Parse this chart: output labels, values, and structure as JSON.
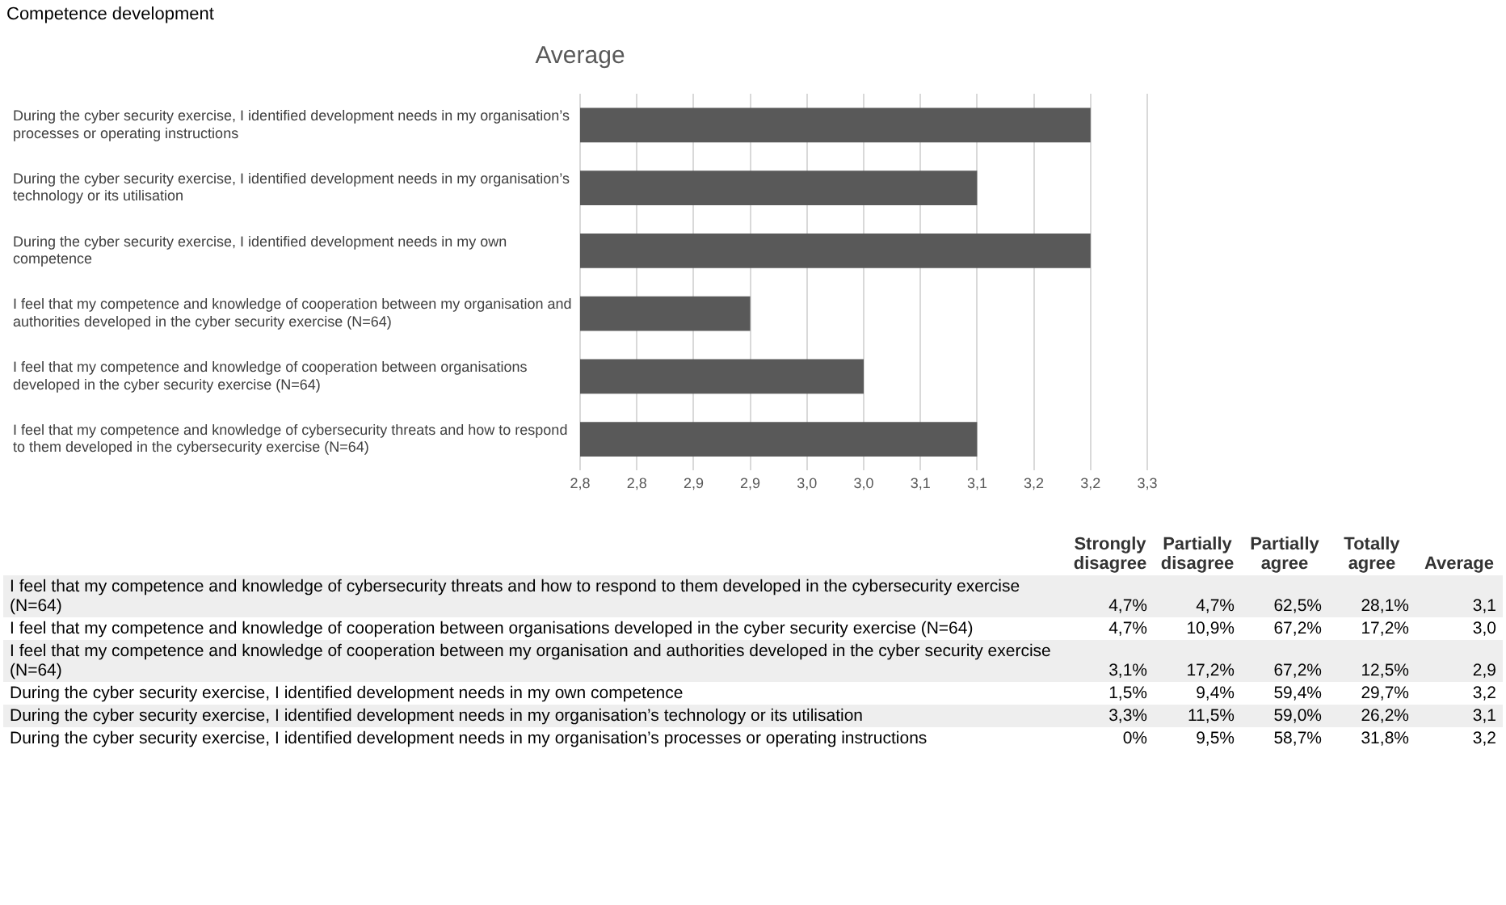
{
  "chart_data": [
    {
      "type": "bar",
      "orientation": "horizontal",
      "title": "Average",
      "annotations": [
        "Competence development"
      ],
      "categories": [
        "During the cyber security exercise, I identified development needs in my organisation’s processes or operating instructions",
        "During the cyber security exercise, I identified development needs in my organisation’s technology or its utilisation",
        "During the cyber security exercise, I identified development needs in my own competence",
        "I feel that my competence and knowledge of cooperation between my organisation and authorities developed in the cyber security exercise (N=64)",
        "I feel that my competence and knowledge of cooperation between organisations developed in the cyber security exercise (N=64)",
        "I feel that my competence and knowledge of cybersecurity threats and how to respond to them developed in the cybersecurity exercise (N=64)"
      ],
      "values": [
        3.2,
        3.1,
        3.2,
        2.9,
        3.0,
        3.1
      ],
      "color": "#595959",
      "xlim": [
        2.75,
        3.25
      ],
      "xticks": [
        {
          "value": 2.75,
          "label": "2,8"
        },
        {
          "value": 2.8,
          "label": "2,8"
        },
        {
          "value": 2.85,
          "label": "2,9"
        },
        {
          "value": 2.9,
          "label": "2,9"
        },
        {
          "value": 2.95,
          "label": "3,0"
        },
        {
          "value": 3.0,
          "label": "3,0"
        },
        {
          "value": 3.05,
          "label": "3,1"
        },
        {
          "value": 3.1,
          "label": "3,1"
        },
        {
          "value": 3.15,
          "label": "3,2"
        },
        {
          "value": 3.2,
          "label": "3,2"
        },
        {
          "value": 3.25,
          "label": "3,3"
        }
      ],
      "grid": "x",
      "legend": false
    },
    {
      "type": "other",
      "categories": [
        "Strongly disagree",
        "Partially disagree",
        "Partially agree",
        "Totally agree",
        "Average"
      ],
      "y_categories": [
        "I feel that my competence and knowledge of cybersecurity threats and how to respond to them developed in the cybersecurity exercise (N=64)",
        "I feel that my competence and knowledge of cooperation between organisations developed in the cyber security exercise (N=64)",
        "I feel that my competence and knowledge of cooperation between my organisation and authorities developed in the cyber security exercise (N=64)",
        "During the cyber security exercise, I identified development needs in my own competence",
        "During the cyber security exercise, I identified development needs in my organisation’s technology or its utilisation",
        "During the cyber security exercise, I identified development needs in my organisation’s processes or operating instructions"
      ],
      "cell_labels": [
        [
          "4,7%",
          "4,7%",
          "62,5%",
          "28,1%",
          "3,1"
        ],
        [
          "4,7%",
          "10,9%",
          "67,2%",
          "17,2%",
          "3,0"
        ],
        [
          "3,1%",
          "17,2%",
          "67,2%",
          "12,5%",
          "2,9"
        ],
        [
          "1,5%",
          "9,4%",
          "59,4%",
          "29,7%",
          "3,2"
        ],
        [
          "3,3%",
          "11,5%",
          "59,0%",
          "26,2%",
          "3,1"
        ],
        [
          "0%",
          "9,5%",
          "58,7%",
          "31,8%",
          "3,2"
        ]
      ]
    }
  ]
}
